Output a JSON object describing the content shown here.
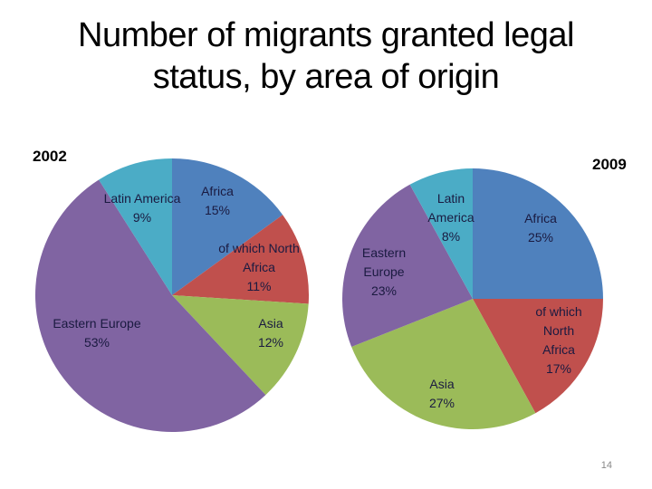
{
  "slide": {
    "title_line1": "Number of migrants granted legal",
    "title_line2": "status, by area of origin",
    "page_number": "14"
  },
  "colors": {
    "Africa": "#4f81bd",
    "of which North Africa": "#c0504d",
    "Asia": "#9bbb59",
    "Eastern Europe": "#8064a2",
    "Latin America": "#4bacc6"
  },
  "chart_data": [
    {
      "type": "pie",
      "title": "2002",
      "categories": [
        "Africa",
        "of which North Africa",
        "Asia",
        "Eastern Europe",
        "Latin America"
      ],
      "values": [
        15,
        11,
        12,
        53,
        9
      ],
      "unit": "%",
      "labels": [
        {
          "lines": [
            "Africa",
            "15%"
          ]
        },
        {
          "lines": [
            "of which North",
            "Africa",
            "11%"
          ]
        },
        {
          "lines": [
            "Asia",
            "12%"
          ]
        },
        {
          "lines": [
            "Eastern Europe",
            "53%"
          ]
        },
        {
          "lines": [
            "Latin America",
            "9%"
          ]
        }
      ],
      "legend": "none (data labels inside slices)"
    },
    {
      "type": "pie",
      "title": "2009",
      "categories": [
        "Africa",
        "of which North Africa",
        "Asia",
        "Eastern Europe",
        "Latin America"
      ],
      "values": [
        25,
        17,
        27,
        23,
        8
      ],
      "unit": "%",
      "labels": [
        {
          "lines": [
            "Africa",
            "25%"
          ]
        },
        {
          "lines": [
            "of which",
            "North",
            "Africa",
            "17%"
          ]
        },
        {
          "lines": [
            "Asia",
            "27%"
          ]
        },
        {
          "lines": [
            "Eastern",
            "Europe",
            "23%"
          ]
        },
        {
          "lines": [
            "Latin",
            "America",
            "8%"
          ]
        }
      ],
      "legend": "none (data labels inside slices)"
    }
  ]
}
